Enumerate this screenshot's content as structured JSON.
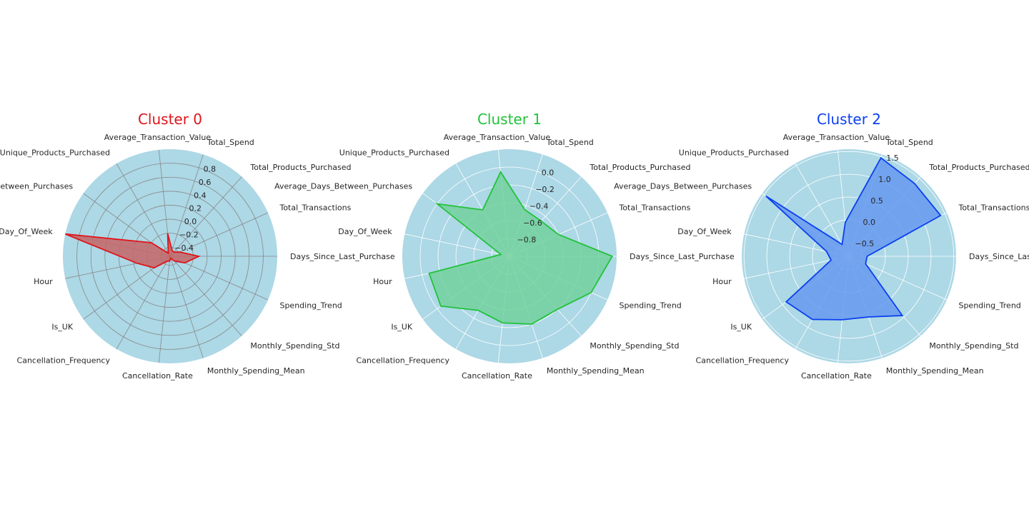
{
  "chart_data": [
    {
      "type": "radar",
      "title": "Cluster 0",
      "color": "#e0141b",
      "fill": "#c46666",
      "background": "#add8e6",
      "gridline_color": "#888888",
      "categories": [
        "Days_Since_Last_Purchase",
        "Total_Transactions",
        "Total_Products_Purchased",
        "Total_Spend",
        "Average_Transaction_Value",
        "Unique_Products_Purchased",
        "Average_Days_Between_Purchases",
        "Day_Of_Week",
        "Hour",
        "Is_UK",
        "Cancellation_Frequency",
        "Cancellation_Rate",
        "Monthly_Spending_Mean",
        "Monthly_Spending_Std",
        "Spending_Trend"
      ],
      "rlim": [
        -0.53,
        1.0
      ],
      "rticks": [
        -0.4,
        -0.2,
        0.0,
        0.2,
        0.4,
        0.6,
        0.8
      ],
      "rtick_labels": [
        "−0.4",
        "−0.2",
        "0.0",
        "0.2",
        "0.4",
        "0.6",
        "0.8"
      ],
      "values": [
        -0.12,
        -0.38,
        -0.45,
        -0.44,
        -0.2,
        -0.48,
        -0.2,
        1.0,
        -0.05,
        -0.25,
        -0.45,
        -0.46,
        -0.5,
        -0.44,
        -0.3
      ]
    },
    {
      "type": "radar",
      "title": "Cluster 1",
      "color": "#22c23a",
      "fill": "#72d19c",
      "background": "#add8e6",
      "gridline_color": "#ffffff",
      "categories": [
        "Days_Since_Last_Purchase",
        "Total_Transactions",
        "Total_Products_Purchased",
        "Total_Spend",
        "Average_Transaction_Value",
        "Unique_Products_Purchased",
        "Average_Days_Between_Purchases",
        "Day_Of_Week",
        "Hour",
        "Is_UK",
        "Cancellation_Frequency",
        "Cancellation_Rate",
        "Monthly_Spending_Mean",
        "Monthly_Spending_Std",
        "Spending_Trend"
      ],
      "rlim": [
        -1.0,
        0.2
      ],
      "rticks": [
        -0.8,
        -0.6,
        -0.4,
        -0.2,
        0.0
      ],
      "rtick_labels": [
        "−0.8",
        "−0.6",
        "−0.4",
        "−0.2",
        "0.0"
      ],
      "values": [
        0.15,
        -0.4,
        -0.47,
        -0.45,
        -0.05,
        -0.4,
        0.0,
        -0.9,
        -0.08,
        -0.05,
        -0.3,
        -0.25,
        -0.2,
        -0.2,
        0.0
      ]
    },
    {
      "type": "radar",
      "title": "Cluster 2",
      "color": "#0a3ff0",
      "fill": "#6699ee",
      "background": "#add8e6",
      "gridline_color": "#ffffff",
      "categories": [
        "Days_Since_Last_Purchase",
        "Total_Transactions",
        "Total_Products_Purchased",
        "Total_Spend",
        "Average_Transaction_Value",
        "Unique_Products_Purchased",
        "Average_Days_Between_Purchases",
        "Day_Of_Week",
        "Hour",
        "Is_UK",
        "Cancellation_Frequency",
        "Cancellation_Rate",
        "Monthly_Spending_Mean",
        "Monthly_Spending_Std",
        "Spending_Trend"
      ],
      "rlim": [
        -0.8,
        1.55
      ],
      "rticks": [
        -0.5,
        0.0,
        0.5,
        1.0,
        1.5
      ],
      "rtick_labels": [
        "−0.5",
        "0.0",
        "0.5",
        "1.0",
        "1.5"
      ],
      "values": [
        -0.4,
        1.4,
        1.35,
        1.47,
        -0.05,
        -0.5,
        1.45,
        -0.3,
        -0.4,
        0.9,
        0.8,
        0.6,
        0.6,
        0.95,
        -0.4
      ]
    }
  ]
}
